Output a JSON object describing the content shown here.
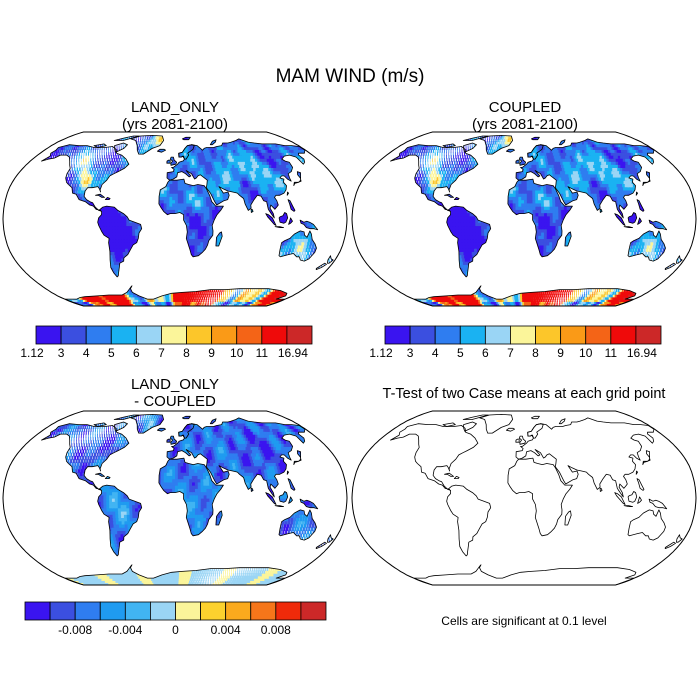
{
  "main_title": "MAM WIND (m/s)",
  "panels": [
    {
      "id": "land-only",
      "title_lines": [
        "LAND_ONLY",
        "(yrs 2081-2100)"
      ]
    },
    {
      "id": "coupled",
      "title_lines": [
        "COUPLED",
        "(yrs 2081-2100)"
      ]
    },
    {
      "id": "difference",
      "title_lines": [
        "LAND_ONLY",
        "- COUPLED"
      ]
    },
    {
      "id": "ttest",
      "title_lines": [
        "T-Test of two Case means at each grid point"
      ]
    }
  ],
  "footnote": "Cells are significant at 0.1 level",
  "chart_data": [
    {
      "type": "heatmap",
      "name": "LAND_ONLY (yrs 2081-2100)",
      "field": "MAM wind speed",
      "units": "m/s",
      "projection": "Robinson",
      "colorbar": {
        "labels": [
          "1.12",
          "3",
          "4",
          "5",
          "6",
          "7",
          "8",
          "9",
          "10",
          "11",
          "16.94"
        ],
        "bounds": [
          1.12,
          3,
          4,
          5,
          6,
          7,
          8,
          9,
          10,
          11,
          16.94
        ],
        "colors": [
          "#3a14f0",
          "#3b4fe0",
          "#2f7df0",
          "#1ab2f2",
          "#9ad5f5",
          "#fbf59a",
          "#fcc62a",
          "#fa9a17",
          "#f46417",
          "#ef0a0a",
          "#cc2828"
        ]
      }
    },
    {
      "type": "heatmap",
      "name": "COUPLED (yrs 2081-2100)",
      "field": "MAM wind speed",
      "units": "m/s",
      "projection": "Robinson",
      "colorbar": {
        "labels": [
          "1.12",
          "3",
          "4",
          "5",
          "6",
          "7",
          "8",
          "9",
          "10",
          "11",
          "16.94"
        ],
        "bounds": [
          1.12,
          3,
          4,
          5,
          6,
          7,
          8,
          9,
          10,
          11,
          16.94
        ],
        "colors": [
          "#3a14f0",
          "#3b4fe0",
          "#2f7df0",
          "#1ab2f2",
          "#9ad5f5",
          "#fbf59a",
          "#fcc62a",
          "#fa9a17",
          "#f46417",
          "#ef0a0a",
          "#cc2828"
        ]
      }
    },
    {
      "type": "heatmap",
      "name": "LAND_ONLY - COUPLED",
      "field": "MAM wind speed difference",
      "units": "m/s",
      "projection": "Robinson",
      "colorbar": {
        "labels": [
          "-0.008",
          "-0.004",
          "0",
          "0.004",
          "0.008"
        ],
        "bounds": [
          -0.012,
          -0.01,
          -0.008,
          -0.006,
          -0.004,
          -0.002,
          0,
          0.002,
          0.004,
          0.006,
          0.008,
          0.01,
          0.012
        ],
        "colors": [
          "#3a14f0",
          "#3b4fe0",
          "#2f7df0",
          "#1f9bf0",
          "#41b4f2",
          "#9ad5f5",
          "#fbf59a",
          "#fcd12e",
          "#fbaa1d",
          "#f6761a",
          "#ef2a0a",
          "#cc2828"
        ]
      }
    },
    {
      "type": "heatmap",
      "name": "T-Test of two Case means at each grid point",
      "field": "significance",
      "significance_level": 0.1,
      "significant_cells": 0,
      "projection": "Robinson"
    }
  ]
}
